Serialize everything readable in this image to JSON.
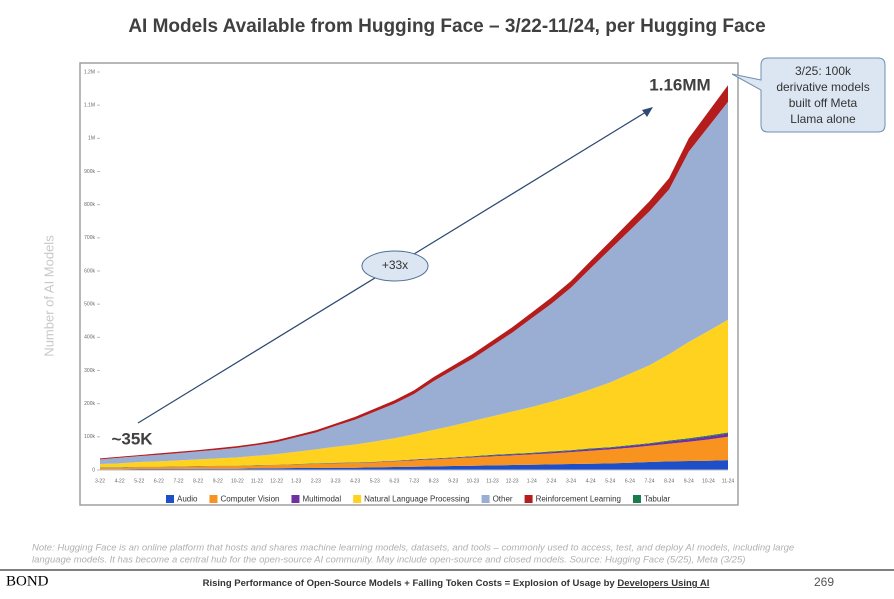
{
  "chart_data": {
    "type": "stacked_area",
    "title": "AI Models Available from Hugging Face – 3/22-11/24, per Hugging Face",
    "y_label": "Number of AI Models",
    "categories": [
      "3-22",
      "4-22",
      "5-22",
      "6-22",
      "7-22",
      "8-22",
      "9-22",
      "10-22",
      "11-22",
      "12-22",
      "1-23",
      "2-23",
      "3-23",
      "4-23",
      "5-23",
      "6-23",
      "7-23",
      "8-23",
      "9-23",
      "10-23",
      "11-23",
      "12-23",
      "1-24",
      "2-24",
      "3-24",
      "4-24",
      "5-24",
      "6-24",
      "7-24",
      "8-24",
      "9-24",
      "10-24",
      "11-24"
    ],
    "ylim": [
      0,
      1200000
    ],
    "yticks": [
      0,
      {
        "value": 100000,
        "label": "100k"
      },
      {
        "value": 200000,
        "label": "200k"
      },
      {
        "value": 300000,
        "label": "300k"
      },
      {
        "value": 400000,
        "label": "400k"
      },
      {
        "value": 500000,
        "label": "500k"
      },
      {
        "value": 600000,
        "label": "600k"
      },
      {
        "value": 700000,
        "label": "700k"
      },
      {
        "value": 800000,
        "label": "800k"
      },
      {
        "value": 900000,
        "label": "900k"
      },
      {
        "value": 1000000,
        "label": "1M"
      },
      {
        "value": 1100000,
        "label": "1.1M"
      },
      {
        "value": 1200000,
        "label": "1.2M"
      }
    ],
    "series": [
      {
        "name": "Audio",
        "color": "#1f4fc8",
        "values": [
          2000,
          2000,
          3000,
          3000,
          3000,
          4000,
          4000,
          4000,
          5000,
          5000,
          6000,
          6000,
          7000,
          7000,
          8000,
          9000,
          10000,
          11000,
          12000,
          13000,
          14000,
          15000,
          16000,
          17000,
          18000,
          19000,
          20000,
          22000,
          24000,
          26000,
          27000,
          28000,
          30000
        ]
      },
      {
        "name": "Computer Vision",
        "color": "#f7931e",
        "values": [
          5000,
          5000,
          6000,
          6000,
          7000,
          7000,
          8000,
          8000,
          9000,
          10000,
          11000,
          12000,
          13000,
          14000,
          15000,
          17000,
          19000,
          21000,
          23000,
          25000,
          27000,
          29000,
          31000,
          33000,
          36000,
          39000,
          42000,
          45000,
          49000,
          53000,
          58000,
          64000,
          70000
        ]
      },
      {
        "name": "Multimodal",
        "color": "#7030a0",
        "values": [
          0,
          0,
          0,
          0,
          0,
          0,
          0,
          0,
          0,
          0,
          0,
          1000,
          1000,
          1000,
          1000,
          1000,
          2000,
          2000,
          2000,
          2000,
          3000,
          3000,
          3000,
          4000,
          4000,
          5000,
          5000,
          6000,
          6000,
          7000,
          8000,
          9000,
          10000
        ]
      },
      {
        "name": "Tabular",
        "color": "#1a7a4c",
        "values": [
          1000,
          1000,
          1000,
          1000,
          1000,
          1000,
          1000,
          1000,
          1000,
          1000,
          1000,
          1000,
          1000,
          1000,
          1000,
          1000,
          1000,
          1000,
          1000,
          2000,
          2000,
          2000,
          2000,
          2000,
          2000,
          2000,
          2000,
          2000,
          2000,
          3000,
          3000,
          3000,
          3000
        ]
      },
      {
        "name": "Natural Language Processing",
        "color": "#ffd21f",
        "values": [
          10000,
          12000,
          14000,
          16000,
          18000,
          20000,
          22000,
          25000,
          28000,
          32000,
          37000,
          42000,
          48000,
          54000,
          61000,
          68000,
          76000,
          86000,
          96000,
          106000,
          116000,
          127000,
          138000,
          150000,
          163000,
          178000,
          195000,
          215000,
          235000,
          260000,
          290000,
          315000,
          340000
        ]
      },
      {
        "name": "Other",
        "color": "#9aaed4",
        "values": [
          14000,
          17000,
          18000,
          20000,
          22000,
          24000,
          26000,
          29000,
          32000,
          36000,
          44000,
          51000,
          63000,
          75000,
          90000,
          104000,
          121000,
          147000,
          168000,
          188000,
          213000,
          238000,
          268000,
          295000,
          327000,
          365000,
          402000,
          433000,
          464000,
          497000,
          574000,
          616000,
          657000
        ]
      },
      {
        "name": "Reinforcement Learning",
        "color": "#b51c1c",
        "values": [
          3000,
          3000,
          3000,
          4000,
          4000,
          4000,
          5000,
          5000,
          5000,
          6000,
          6000,
          7000,
          7000,
          8000,
          9000,
          10000,
          11000,
          12000,
          13000,
          14000,
          15000,
          16000,
          17000,
          19000,
          20000,
          22000,
          24000,
          27000,
          30000,
          34000,
          40000,
          45000,
          50000
        ]
      }
    ],
    "legend_order": [
      0,
      1,
      2,
      4,
      5,
      6,
      3
    ],
    "annotations": {
      "end": "1.16MM",
      "start": "~35K",
      "growth": "+33x",
      "callout": [
        "3/25: 100k",
        "derivative models",
        "built off Meta",
        "Llama alone"
      ]
    }
  },
  "note": [
    "Note: Hugging Face is an online platform that hosts and shares machine learning models, datasets, and tools – commonly used to access, test, and deploy AI models, including large",
    "language models. It has become a central hub for the open-source AI community. May include open-source and closed models. Source: Hugging Face (5/25), Meta (3/25)"
  ],
  "footer": {
    "brand": "BOND",
    "text": "Rising Performance of Open-Source Models + Falling Token Costs = Explosion of Usage by ",
    "link": "Developers Using AI",
    "page": "269"
  }
}
